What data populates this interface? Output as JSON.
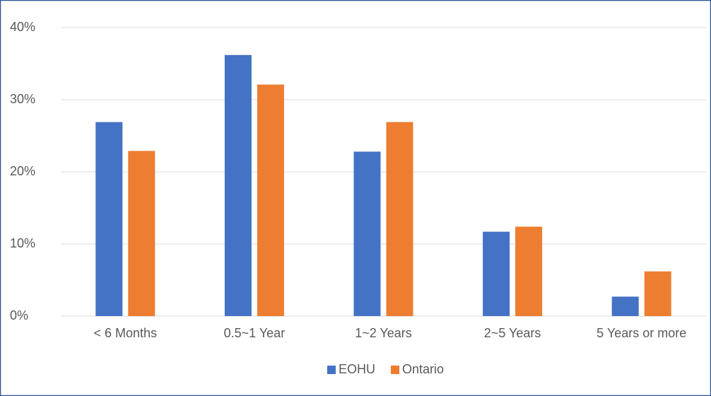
{
  "chart_data": {
    "type": "bar",
    "categories": [
      "< 6 Months",
      "0.5~1 Year",
      "1~2 Years",
      "2~5 Years",
      "5 Years or more"
    ],
    "series": [
      {
        "name": "EOHU",
        "color": "#4472c4",
        "values": [
          26.9,
          36.2,
          22.8,
          11.7,
          2.7
        ]
      },
      {
        "name": "Ontario",
        "color": "#ed7d31",
        "values": [
          22.9,
          32.1,
          26.9,
          12.4,
          6.2
        ]
      }
    ],
    "ylim": [
      0,
      40
    ],
    "yticks": [
      {
        "value": 0,
        "label": "0%"
      },
      {
        "value": 10,
        "label": "10%"
      },
      {
        "value": 20,
        "label": "20%"
      },
      {
        "value": 30,
        "label": "30%"
      },
      {
        "value": 40,
        "label": "40%"
      }
    ],
    "grid": true,
    "legend": "bottom"
  }
}
